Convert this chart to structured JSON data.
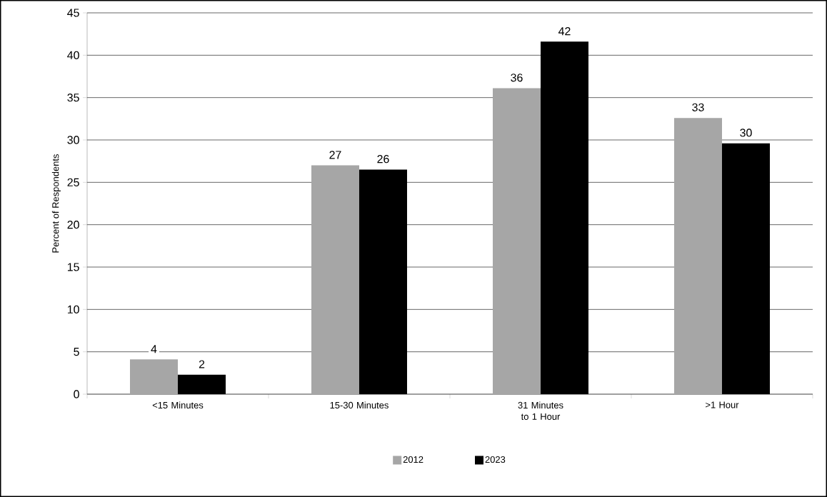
{
  "chart_data": {
    "type": "bar",
    "ylabel": "Percent of Respondents",
    "categories": [
      "<15 Minutes",
      "15-30 Minutes",
      "31 Minutes to 1 Hour",
      ">1 Hour"
    ],
    "series": [
      {
        "name": "2012",
        "color": "#a6a6a6",
        "values": [
          4.1,
          27.0,
          36.1,
          32.6
        ],
        "value_labels": [
          "4",
          "27",
          "36",
          "33"
        ]
      },
      {
        "name": "2023",
        "color": "#000000",
        "values": [
          2.3,
          26.5,
          41.6,
          29.6
        ],
        "value_labels": [
          "2",
          "26",
          "42",
          "30"
        ]
      }
    ],
    "ylim": [
      0,
      45
    ],
    "yticks": [
      0,
      5,
      10,
      15,
      20,
      25,
      30,
      35,
      40,
      45
    ],
    "grid": "y",
    "legend": "bottom"
  }
}
